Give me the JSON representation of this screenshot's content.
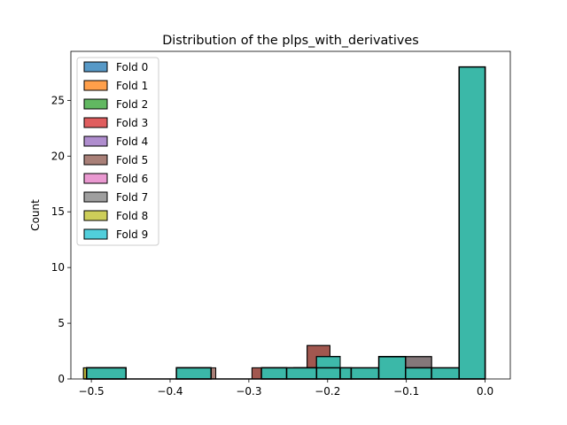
{
  "chart_data": {
    "type": "histogram",
    "title": "Distribution of the plps_with_derivatives",
    "xlabel": "",
    "ylabel": "Count",
    "xlim": [
      -0.526,
      0.032
    ],
    "ylim": [
      0,
      29.4
    ],
    "xticks": [
      {
        "value": -0.5,
        "label": "−0.5"
      },
      {
        "value": -0.4,
        "label": "−0.4"
      },
      {
        "value": -0.3,
        "label": "−0.3"
      },
      {
        "value": -0.2,
        "label": "−0.2"
      },
      {
        "value": -0.1,
        "label": "−0.1"
      },
      {
        "value": 0.0,
        "label": "0.0"
      }
    ],
    "yticks": [
      {
        "value": 0,
        "label": "0"
      },
      {
        "value": 5,
        "label": "5"
      },
      {
        "value": 10,
        "label": "10"
      },
      {
        "value": 15,
        "label": "15"
      },
      {
        "value": 20,
        "label": "20"
      },
      {
        "value": 25,
        "label": "25"
      }
    ],
    "grid": false,
    "legend_position": "upper-left",
    "series": [
      {
        "name": "Fold 0",
        "color": "#1f77b4",
        "bins": [
          {
            "x0": -0.506,
            "x1": -0.456,
            "y": 1
          },
          {
            "x0": -0.392,
            "x1": -0.348,
            "y": 1
          },
          {
            "x0": -0.284,
            "x1": -0.252,
            "y": 1
          },
          {
            "x0": -0.243,
            "x1": -0.214,
            "y": 1
          },
          {
            "x0": -0.214,
            "x1": -0.184,
            "y": 2
          },
          {
            "x0": -0.135,
            "x1": -0.101,
            "y": 2
          },
          {
            "x0": -0.101,
            "x1": -0.068,
            "y": 1
          },
          {
            "x0": -0.033,
            "x1": 0.0,
            "y": 28
          }
        ]
      },
      {
        "name": "Fold 1",
        "color": "#ff7f0e",
        "bins": [
          {
            "x0": -0.506,
            "x1": -0.456,
            "y": 1
          },
          {
            "x0": -0.392,
            "x1": -0.348,
            "y": 1
          },
          {
            "x0": -0.284,
            "x1": -0.252,
            "y": 1
          },
          {
            "x0": -0.243,
            "x1": -0.214,
            "y": 1
          },
          {
            "x0": -0.214,
            "x1": -0.184,
            "y": 2
          },
          {
            "x0": -0.135,
            "x1": -0.101,
            "y": 2
          },
          {
            "x0": -0.101,
            "x1": -0.068,
            "y": 1
          },
          {
            "x0": -0.033,
            "x1": 0.0,
            "y": 28
          }
        ]
      },
      {
        "name": "Fold 2",
        "color": "#2ca02c",
        "bins": [
          {
            "x0": -0.506,
            "x1": -0.456,
            "y": 1
          },
          {
            "x0": -0.392,
            "x1": -0.348,
            "y": 1
          },
          {
            "x0": -0.284,
            "x1": -0.252,
            "y": 1
          },
          {
            "x0": -0.243,
            "x1": -0.214,
            "y": 1
          },
          {
            "x0": -0.214,
            "x1": -0.184,
            "y": 2
          },
          {
            "x0": -0.135,
            "x1": -0.101,
            "y": 2
          },
          {
            "x0": -0.101,
            "x1": -0.068,
            "y": 1
          },
          {
            "x0": -0.033,
            "x1": 0.0,
            "y": 28
          }
        ]
      },
      {
        "name": "Fold 3",
        "color": "#d62728",
        "bins": [
          {
            "x0": -0.506,
            "x1": -0.456,
            "y": 1
          },
          {
            "x0": -0.392,
            "x1": -0.348,
            "y": 1
          },
          {
            "x0": -0.296,
            "x1": -0.268,
            "y": 1
          },
          {
            "x0": -0.268,
            "x1": -0.226,
            "y": 1
          },
          {
            "x0": -0.226,
            "x1": -0.197,
            "y": 3
          },
          {
            "x0": -0.197,
            "x1": -0.171,
            "y": 1
          },
          {
            "x0": -0.135,
            "x1": -0.101,
            "y": 2
          },
          {
            "x0": -0.101,
            "x1": -0.068,
            "y": 1
          },
          {
            "x0": -0.033,
            "x1": 0.0,
            "y": 28
          }
        ]
      },
      {
        "name": "Fold 4",
        "color": "#9467bd",
        "bins": [
          {
            "x0": -0.506,
            "x1": -0.456,
            "y": 1
          },
          {
            "x0": -0.392,
            "x1": -0.348,
            "y": 1
          },
          {
            "x0": -0.284,
            "x1": -0.252,
            "y": 1
          },
          {
            "x0": -0.243,
            "x1": -0.214,
            "y": 1
          },
          {
            "x0": -0.214,
            "x1": -0.184,
            "y": 2
          },
          {
            "x0": -0.135,
            "x1": -0.101,
            "y": 2
          },
          {
            "x0": -0.101,
            "x1": -0.068,
            "y": 2
          },
          {
            "x0": -0.033,
            "x1": 0.0,
            "y": 28
          }
        ]
      },
      {
        "name": "Fold 5",
        "color": "#8c564b",
        "bins": [
          {
            "x0": -0.51,
            "x1": -0.456,
            "y": 1
          },
          {
            "x0": -0.392,
            "x1": -0.342,
            "y": 1
          },
          {
            "x0": -0.296,
            "x1": -0.268,
            "y": 1
          },
          {
            "x0": -0.268,
            "x1": -0.226,
            "y": 1
          },
          {
            "x0": -0.226,
            "x1": -0.197,
            "y": 3
          },
          {
            "x0": -0.197,
            "x1": -0.171,
            "y": 1
          },
          {
            "x0": -0.135,
            "x1": -0.101,
            "y": 2
          },
          {
            "x0": -0.101,
            "x1": -0.068,
            "y": 2
          },
          {
            "x0": -0.033,
            "x1": 0.0,
            "y": 28
          }
        ]
      },
      {
        "name": "Fold 6",
        "color": "#e377c2",
        "bins": [
          {
            "x0": -0.506,
            "x1": -0.456,
            "y": 1
          },
          {
            "x0": -0.392,
            "x1": -0.348,
            "y": 1
          },
          {
            "x0": -0.284,
            "x1": -0.252,
            "y": 1
          },
          {
            "x0": -0.243,
            "x1": -0.214,
            "y": 1
          },
          {
            "x0": -0.214,
            "x1": -0.184,
            "y": 2
          },
          {
            "x0": -0.135,
            "x1": -0.101,
            "y": 2
          },
          {
            "x0": -0.101,
            "x1": -0.068,
            "y": 1
          },
          {
            "x0": -0.033,
            "x1": 0.0,
            "y": 28
          }
        ]
      },
      {
        "name": "Fold 7",
        "color": "#7f7f7f",
        "bins": [
          {
            "x0": -0.506,
            "x1": -0.456,
            "y": 1
          },
          {
            "x0": -0.392,
            "x1": -0.348,
            "y": 1
          },
          {
            "x0": -0.284,
            "x1": -0.252,
            "y": 1
          },
          {
            "x0": -0.243,
            "x1": -0.214,
            "y": 1
          },
          {
            "x0": -0.214,
            "x1": -0.184,
            "y": 2
          },
          {
            "x0": -0.135,
            "x1": -0.101,
            "y": 2
          },
          {
            "x0": -0.101,
            "x1": -0.068,
            "y": 2
          },
          {
            "x0": -0.033,
            "x1": 0.0,
            "y": 28
          }
        ]
      },
      {
        "name": "Fold 8",
        "color": "#bcbd22",
        "bins": [
          {
            "x0": -0.51,
            "x1": -0.456,
            "y": 1
          },
          {
            "x0": -0.392,
            "x1": -0.348,
            "y": 1
          },
          {
            "x0": -0.284,
            "x1": -0.252,
            "y": 1
          },
          {
            "x0": -0.243,
            "x1": -0.214,
            "y": 1
          },
          {
            "x0": -0.214,
            "x1": -0.184,
            "y": 2
          },
          {
            "x0": -0.184,
            "x1": -0.17,
            "y": 1
          },
          {
            "x0": -0.135,
            "x1": -0.101,
            "y": 2
          },
          {
            "x0": -0.101,
            "x1": -0.068,
            "y": 1
          },
          {
            "x0": -0.033,
            "x1": 0.0,
            "y": 28
          }
        ]
      },
      {
        "name": "Fold 9",
        "color": "#17becf",
        "bins": [
          {
            "x0": -0.506,
            "x1": -0.456,
            "y": 1
          },
          {
            "x0": -0.392,
            "x1": -0.348,
            "y": 1
          },
          {
            "x0": -0.284,
            "x1": -0.252,
            "y": 1
          },
          {
            "x0": -0.243,
            "x1": -0.214,
            "y": 1
          },
          {
            "x0": -0.214,
            "x1": -0.184,
            "y": 2
          },
          {
            "x0": -0.135,
            "x1": -0.101,
            "y": 2
          },
          {
            "x0": -0.101,
            "x1": -0.068,
            "y": 1
          },
          {
            "x0": -0.033,
            "x1": 0.0,
            "y": 28
          }
        ]
      }
    ],
    "top_layer": {
      "color": "#3bb8a8",
      "bins": [
        {
          "x0": -0.506,
          "x1": -0.456,
          "y": 1
        },
        {
          "x0": -0.392,
          "x1": -0.348,
          "y": 1
        },
        {
          "x0": -0.284,
          "x1": -0.252,
          "y": 1
        },
        {
          "x0": -0.252,
          "x1": -0.214,
          "y": 1
        },
        {
          "x0": -0.214,
          "x1": -0.184,
          "y": 1
        },
        {
          "x0": -0.184,
          "x1": -0.17,
          "y": 1
        },
        {
          "x0": -0.17,
          "x1": -0.135,
          "y": 1
        },
        {
          "x0": -0.135,
          "x1": -0.101,
          "y": 2
        },
        {
          "x0": -0.101,
          "x1": -0.068,
          "y": 1
        },
        {
          "x0": -0.068,
          "x1": -0.033,
          "y": 1
        },
        {
          "x0": -0.033,
          "x1": 0.0,
          "y": 28
        }
      ]
    }
  }
}
